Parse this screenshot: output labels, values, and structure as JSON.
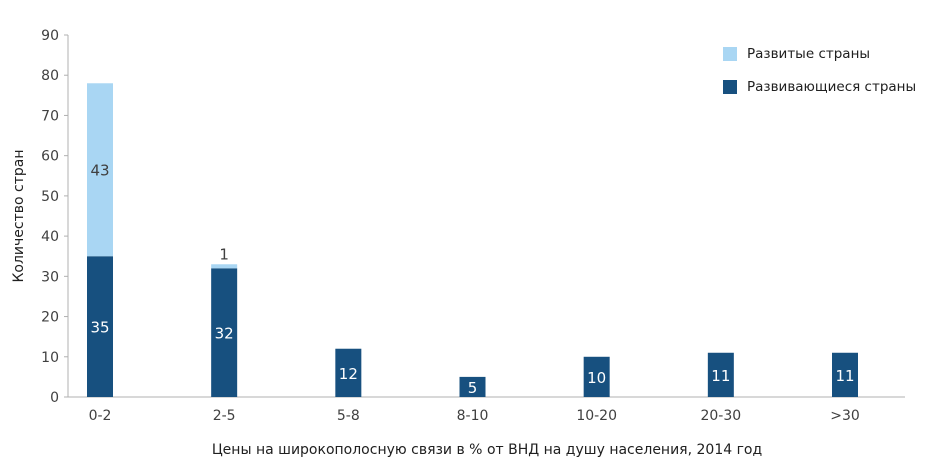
{
  "chart_data": {
    "type": "bar",
    "stacked": true,
    "categories": [
      "0-2",
      "2-5",
      "5-8",
      "8-10",
      "10-20",
      "20-30",
      ">30"
    ],
    "series": [
      {
        "name": "Развивающиеся страны",
        "color": "#17507f",
        "values": [
          35,
          32,
          12,
          5,
          10,
          11,
          11
        ]
      },
      {
        "name": "Развитые страны",
        "color": "#a9d6f3",
        "values": [
          43,
          1,
          0,
          0,
          0,
          0,
          0
        ]
      }
    ],
    "xlabel": "Цены на широкополосную связи в % от ВНД на душу населения, 2014 год",
    "ylabel": "Количество стран",
    "ylim": [
      0,
      90
    ],
    "yticks": [
      0,
      10,
      20,
      30,
      40,
      50,
      60,
      70,
      80,
      90
    ],
    "grid": false,
    "legend_position": "top-right",
    "legend": [
      {
        "label": "Развитые страны",
        "color": "#a9d6f3"
      },
      {
        "label": "Развивающиеся страны",
        "color": "#17507f"
      }
    ]
  }
}
